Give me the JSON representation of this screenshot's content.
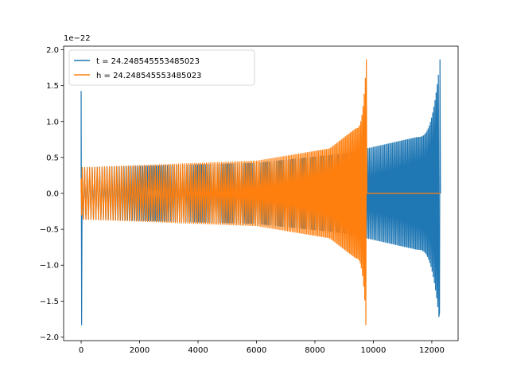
{
  "chart_data": {
    "type": "line",
    "title": "",
    "xlabel": "",
    "ylabel": "",
    "y_offset_label": "1e−22",
    "xlim": [
      -600,
      12900
    ],
    "ylim": [
      -2.05,
      2.05
    ],
    "x_ticks": [
      0,
      2000,
      4000,
      6000,
      8000,
      10000,
      12000
    ],
    "x_tick_labels": [
      "0",
      "2000",
      "4000",
      "6000",
      "8000",
      "10000",
      "12000"
    ],
    "y_ticks": [
      -2.0,
      -1.5,
      -1.0,
      -0.5,
      0.0,
      0.5,
      1.0,
      1.5,
      2.0
    ],
    "y_tick_labels": [
      "−2.0",
      "−1.5",
      "−1.0",
      "−0.5",
      "0.0",
      "0.5",
      "1.0",
      "1.5",
      "2.0"
    ],
    "grid": false,
    "legend_position": "upper-left",
    "series": [
      {
        "name": "t = 24.248545553485023",
        "color": "#1f77b4",
        "start_x": 0,
        "end_x": 12290,
        "merger_x": 12280,
        "early_spike": {
          "max": 1.42,
          "min": -1.83
        },
        "inspiral_amplitude": [
          {
            "x": 150,
            "a": 0.36
          },
          {
            "x": 6000,
            "a": 0.42
          },
          {
            "x": 9000,
            "a": 0.55
          },
          {
            "x": 11500,
            "a": 0.78
          },
          {
            "x": 12280,
            "a": 1.86
          }
        ],
        "min_at_merger": -1.66,
        "tail_value": 0.0
      },
      {
        "name": "h = 24.248545553485023",
        "color": "#ff7f0e",
        "start_x": 0,
        "end_x": 12290,
        "merger_x": 9760,
        "early_spike": {
          "max": 0.2,
          "min": -0.3
        },
        "inspiral_amplitude": [
          {
            "x": 150,
            "a": 0.36
          },
          {
            "x": 6000,
            "a": 0.45
          },
          {
            "x": 8500,
            "a": 0.62
          },
          {
            "x": 9400,
            "a": 0.9
          },
          {
            "x": 9760,
            "a": 1.86
          }
        ],
        "min_at_merger": -1.83,
        "tail_value": 0.0
      }
    ]
  }
}
